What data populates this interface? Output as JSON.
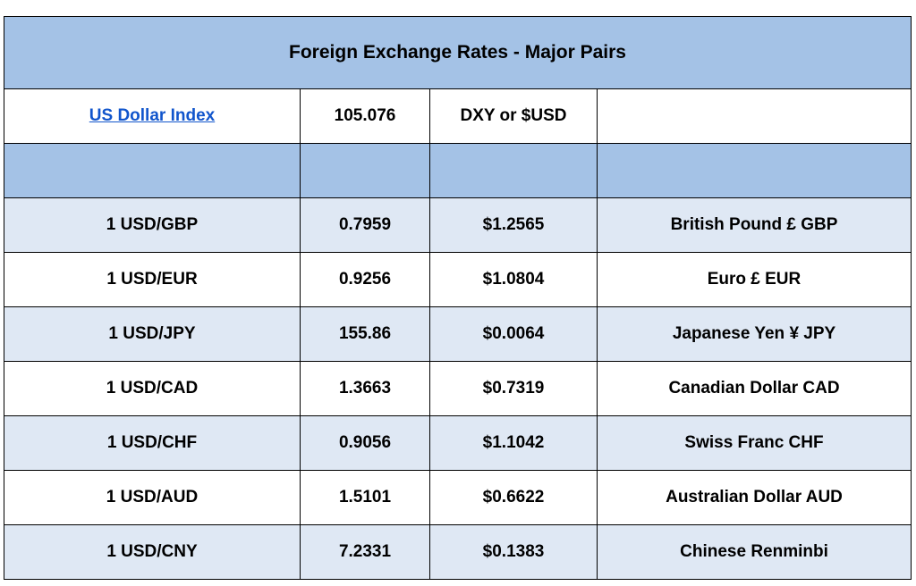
{
  "title": "Foreign Exchange Rates - Major Pairs",
  "index": {
    "link_label": "US Dollar Index",
    "value": "105.076",
    "symbol": "DXY or $USD",
    "note": ""
  },
  "colors": {
    "header_fill": "#a4c2e6",
    "band_fill": "#dfe8f4",
    "link": "#1155cc"
  },
  "rates": [
    {
      "pair": "1 USD/GBP",
      "rate": "0.7959",
      "usd_value": "$1.2565",
      "currency": "British Pound £ GBP"
    },
    {
      "pair": "1 USD/EUR",
      "rate": "0.9256",
      "usd_value": "$1.0804",
      "currency": "Euro £ EUR"
    },
    {
      "pair": "1 USD/JPY",
      "rate": "155.86",
      "usd_value": "$0.0064",
      "currency": "Japanese Yen ¥ JPY"
    },
    {
      "pair": "1 USD/CAD",
      "rate": "1.3663",
      "usd_value": "$0.7319",
      "currency": "Canadian Dollar CAD"
    },
    {
      "pair": "1 USD/CHF",
      "rate": "0.9056",
      "usd_value": "$1.1042",
      "currency": "Swiss Franc CHF"
    },
    {
      "pair": "1 USD/AUD",
      "rate": "1.5101",
      "usd_value": "$0.6622",
      "currency": "Australian Dollar AUD"
    },
    {
      "pair": "1 USD/CNY",
      "rate": "7.2331",
      "usd_value": "$0.1383",
      "currency": "Chinese Renminbi"
    }
  ]
}
